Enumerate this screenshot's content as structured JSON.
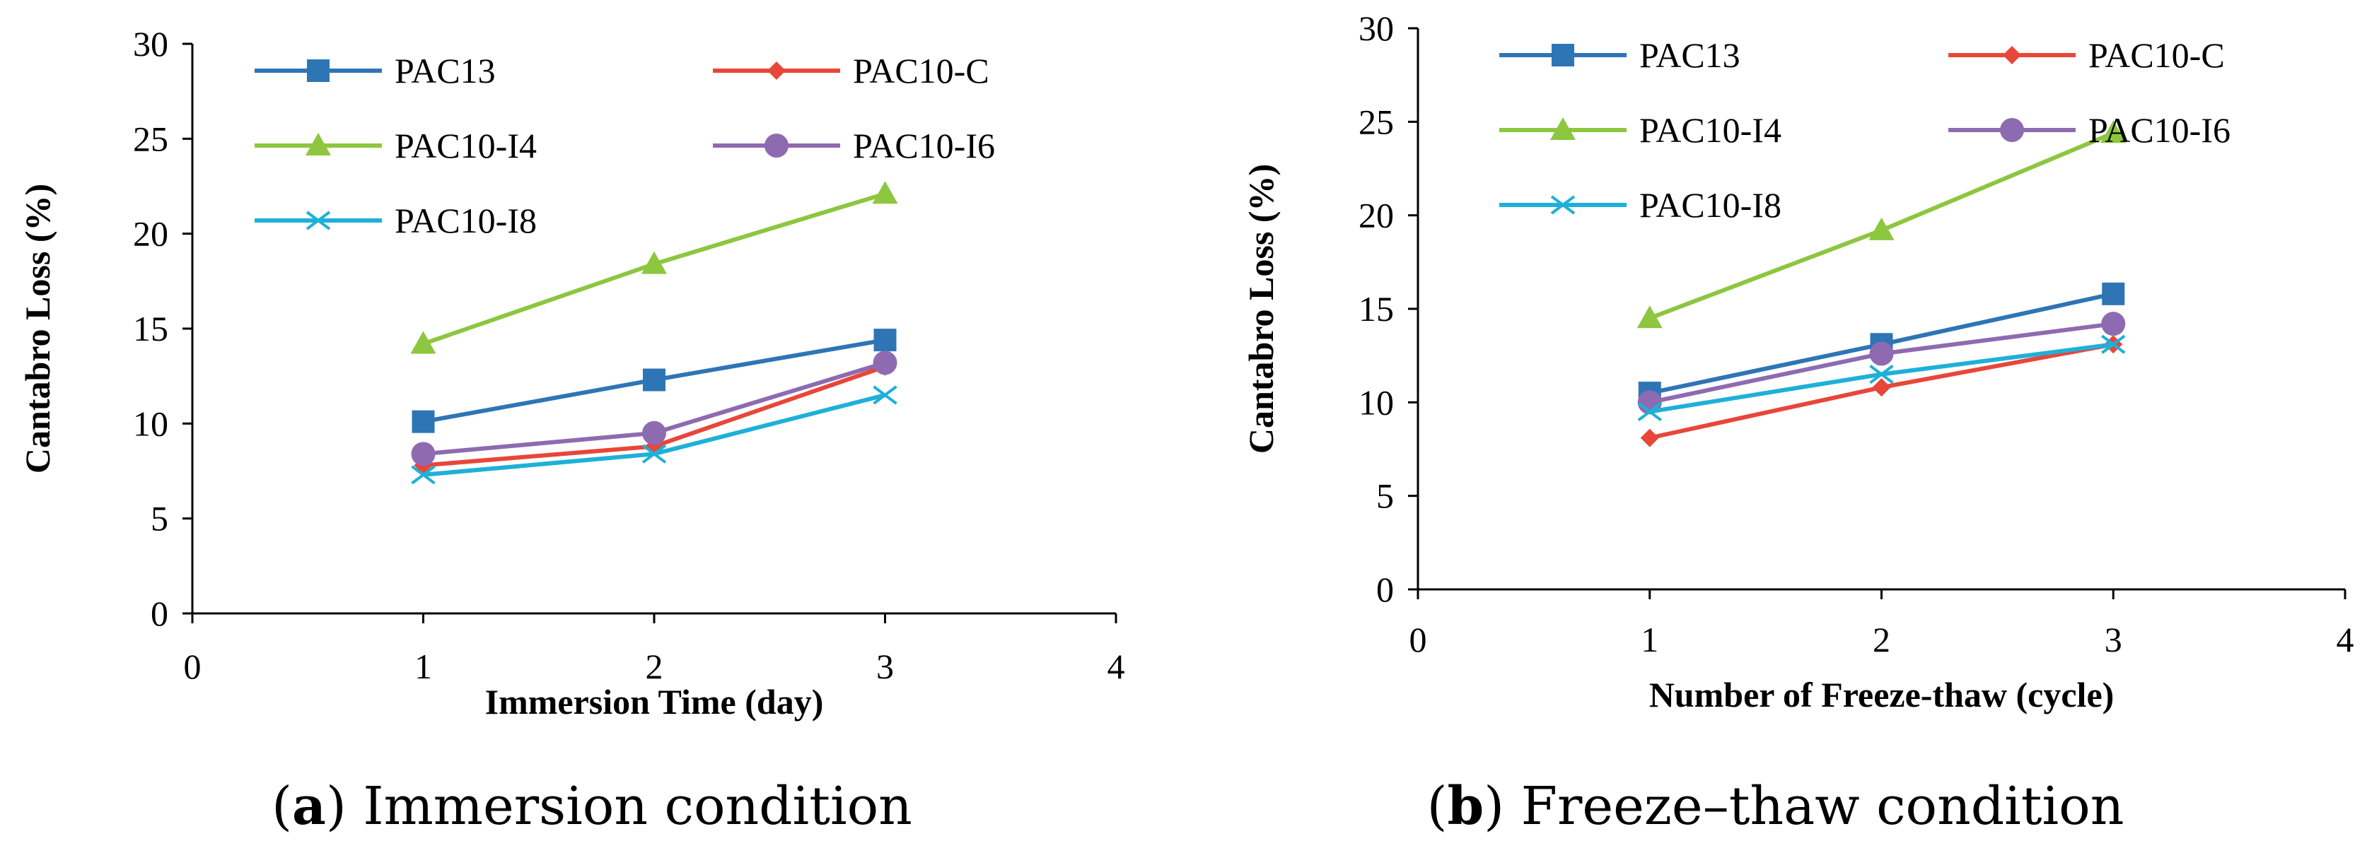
{
  "chart_data": [
    {
      "type": "line",
      "caption_letter": "a",
      "caption_text": " Immersion condition",
      "xlabel": "Immersion Time (day)",
      "ylabel": "Cantabro Loss (%)",
      "xlim": [
        0,
        4
      ],
      "ylim": [
        0,
        30
      ],
      "xticks": [
        0,
        1,
        2,
        3,
        4
      ],
      "yticks": [
        0,
        5,
        10,
        15,
        20,
        25,
        30
      ],
      "legend_placement": "top",
      "grid": false,
      "x": [
        1,
        2,
        3
      ],
      "series": [
        {
          "name": "PAC13",
          "color": "#2E75B6",
          "marker": "square",
          "values": [
            10.1,
            12.3,
            14.4
          ]
        },
        {
          "name": "PAC10-C",
          "color": "#E8463A",
          "marker": "diamond",
          "values": [
            7.8,
            8.8,
            13.0
          ]
        },
        {
          "name": "PAC10-I4",
          "color": "#8DC63F",
          "marker": "triangle",
          "values": [
            14.2,
            18.4,
            22.1
          ]
        },
        {
          "name": "PAC10-I6",
          "color": "#8E6BB0",
          "marker": "circle",
          "values": [
            8.4,
            9.5,
            13.2
          ]
        },
        {
          "name": "PAC10-I8",
          "color": "#1FB0D8",
          "marker": "x",
          "values": [
            7.3,
            8.4,
            11.5
          ]
        }
      ]
    },
    {
      "type": "line",
      "caption_letter": "b",
      "caption_text": " Freeze–thaw condition",
      "xlabel": "Number of Freeze-thaw (cycle)",
      "ylabel": "Cantabro Loss (%)",
      "xlim": [
        0,
        4
      ],
      "ylim": [
        0,
        30
      ],
      "xticks": [
        0,
        1,
        2,
        3,
        4
      ],
      "yticks": [
        0,
        5,
        10,
        15,
        20,
        25,
        30
      ],
      "legend_placement": "top",
      "grid": false,
      "x": [
        1,
        2,
        3
      ],
      "series": [
        {
          "name": "PAC13",
          "color": "#2E75B6",
          "marker": "square",
          "values": [
            10.5,
            13.1,
            15.8
          ]
        },
        {
          "name": "PAC10-C",
          "color": "#E8463A",
          "marker": "diamond",
          "values": [
            8.1,
            10.8,
            13.1
          ]
        },
        {
          "name": "PAC10-I4",
          "color": "#8DC63F",
          "marker": "triangle",
          "values": [
            14.5,
            19.2,
            24.4
          ]
        },
        {
          "name": "PAC10-I6",
          "color": "#8E6BB0",
          "marker": "circle",
          "values": [
            10.0,
            12.6,
            14.2
          ]
        },
        {
          "name": "PAC10-I8",
          "color": "#1FB0D8",
          "marker": "x",
          "values": [
            9.5,
            11.5,
            13.1
          ]
        }
      ]
    }
  ]
}
